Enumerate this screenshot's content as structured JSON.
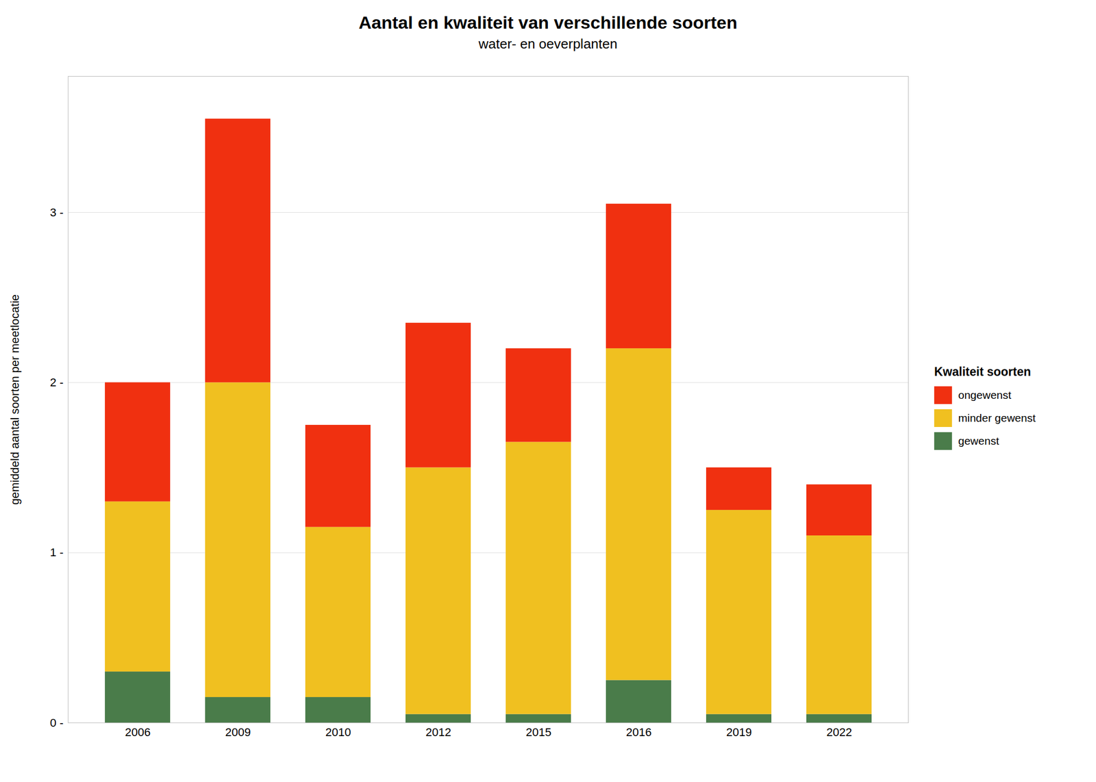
{
  "chart_data": {
    "type": "bar",
    "stacked": true,
    "title": "Aantal en kwaliteit van verschillende soorten",
    "subtitle": "water- en oeverplanten",
    "ylabel": "gemiddeld aantal soorten per meetlocatie",
    "legend_title": "Kwaliteit soorten",
    "legend": "right",
    "grid": true,
    "categories": [
      "2006",
      "2009",
      "2010",
      "2012",
      "2015",
      "2016",
      "2019",
      "2022"
    ],
    "series": [
      {
        "name": "gewenst",
        "color": "#4a7c4a",
        "values": [
          0.3,
          0.15,
          0.15,
          0.05,
          0.05,
          0.25,
          0.05,
          0.05
        ]
      },
      {
        "name": "minder gewenst",
        "color": "#f0c020",
        "values": [
          1.0,
          1.85,
          1.0,
          1.45,
          1.6,
          1.95,
          1.2,
          1.05
        ]
      },
      {
        "name": "ongewenst",
        "color": "#f03010",
        "values": [
          0.7,
          1.55,
          0.6,
          0.85,
          0.55,
          0.85,
          0.25,
          0.3
        ]
      }
    ],
    "ylim": [
      0,
      3.8
    ],
    "yticks": [
      {
        "value": 0,
        "label": "0 -"
      },
      {
        "value": 1,
        "label": "1 -"
      },
      {
        "value": 2,
        "label": "2 -"
      },
      {
        "value": 3,
        "label": "3 -"
      }
    ]
  }
}
